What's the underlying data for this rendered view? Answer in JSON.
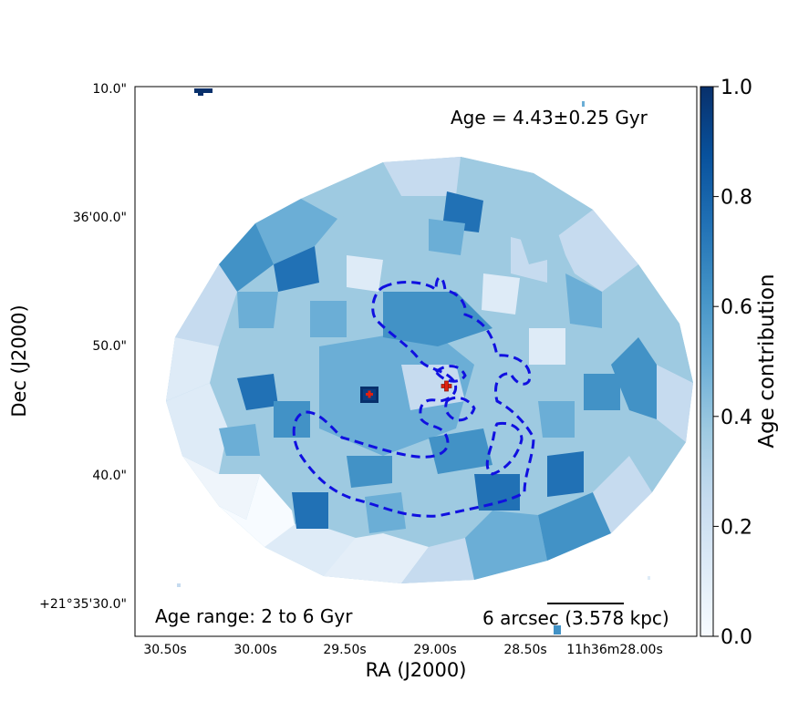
{
  "chart_data": {
    "type": "heatmap",
    "title": "",
    "xlabel": "RA (J2000)",
    "ylabel": "Dec (J2000)",
    "x_ticks": [
      "30.50s",
      "30.00s",
      "29.50s",
      "29.00s",
      "28.50s",
      "11h36m28.00s"
    ],
    "y_ticks": [
      "10.0\"",
      "36'00.0\"",
      "50.0\"",
      "40.0\"",
      "+21°35'30.0\""
    ],
    "colorbar": {
      "label": "Age contribution",
      "min": 0.0,
      "max": 1.0,
      "ticks": [
        "0.0",
        "0.2",
        "0.4",
        "0.6",
        "0.8",
        "1.0"
      ],
      "cmap": "Blues"
    },
    "annotations": {
      "age": "Age = 4.43±0.25 Gyr",
      "age_range": "Age range: 2 to 6 Gyr",
      "scale_bar": "6 arcsec (3.578 kpc)"
    },
    "markers": [
      {
        "name": "Dark nucleus",
        "ra_s": 29.35,
        "dec_arcsec": 46.2,
        "color": "#08306b"
      },
      {
        "name": "Red cross",
        "ra_s": 28.91,
        "dec_arcsec": 46.7,
        "color": "#e02010"
      }
    ],
    "contour": {
      "style": "dashed",
      "color": "#1010e0"
    }
  }
}
